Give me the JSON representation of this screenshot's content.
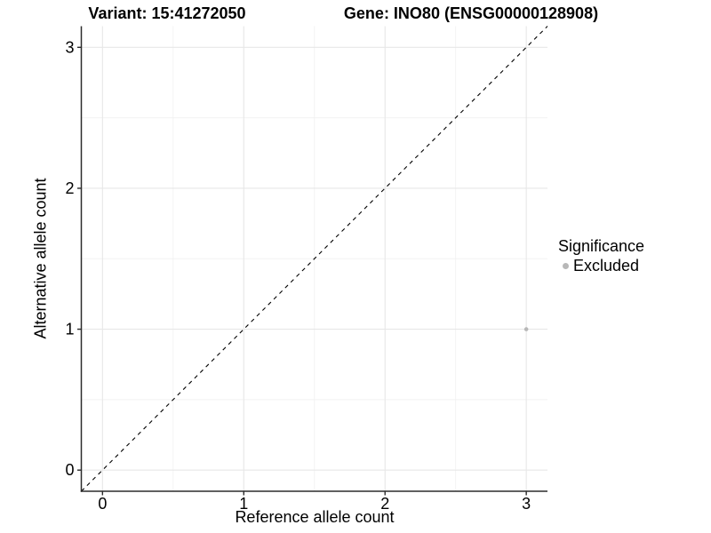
{
  "header": {
    "variant_title": "Variant: 15:41272050",
    "gene_title": "Gene: INO80 (ENSG00000128908)"
  },
  "chart_data": {
    "type": "scatter",
    "xlabel": "Reference allele count",
    "ylabel": "Alternative allele count",
    "xlim": [
      -0.15,
      3.15
    ],
    "ylim": [
      -0.15,
      3.15
    ],
    "x_ticks": [
      0,
      1,
      2,
      3
    ],
    "y_ticks": [
      0,
      1,
      2,
      3
    ],
    "x_minor_ticks": [
      0.5,
      1.5,
      2.5
    ],
    "y_minor_ticks": [
      0.5,
      1.5,
      2.5
    ],
    "grid": true,
    "points": [
      {
        "x": 3,
        "y": 1,
        "significance": "Excluded"
      }
    ],
    "identity_line": {
      "equation": "y = x",
      "style": "dashed",
      "color": "#000000"
    },
    "legend": {
      "title": "Significance",
      "position": "right",
      "entries": [
        {
          "label": "Excluded",
          "color": "#b8b8b8"
        }
      ]
    },
    "colors": {
      "point": "#b8b8b8",
      "major_grid": "#e7e7e7",
      "minor_grid": "#f2f2f2",
      "axis_line": "#2b2b2b",
      "tick_label": "#000000",
      "background": "#ffffff"
    }
  }
}
